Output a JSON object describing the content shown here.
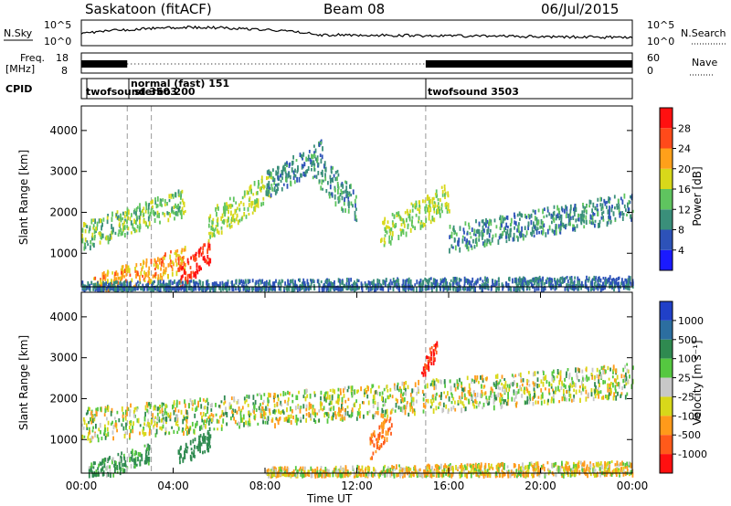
{
  "header": {
    "title": "Saskatoon (fitACF)",
    "beam": "Beam 08",
    "date": "06/Jul/2015"
  },
  "noise_panel": {
    "left_label": "N.Sky",
    "right_label": "N.Search",
    "left_ticks": [
      "10^5",
      "10^0"
    ],
    "right_ticks": [
      "10^5",
      "10^0"
    ]
  },
  "freq_panel": {
    "left_label_1": "Freq.",
    "left_label_2": "[MHz]",
    "right_label": "Nave",
    "left_ticks": [
      "18",
      "8"
    ],
    "right_ticks": [
      "60",
      "0"
    ]
  },
  "cpid_panel": {
    "label": "CPID",
    "modes": [
      {
        "text": "twofsound 3503",
        "start": "00:00"
      },
      {
        "text": "normal (fast) 151",
        "start": "02:00"
      },
      {
        "text": "stereo 200",
        "start": "03:05"
      },
      {
        "text": "twofsound 3503",
        "start": "15:00"
      }
    ]
  },
  "x_axis": {
    "label": "Time UT",
    "ticks": [
      "00:00",
      "04:00",
      "08:00",
      "12:00",
      "16:00",
      "20:00",
      "00:00"
    ]
  },
  "power_panel": {
    "ylabel": "Slant Range [km]",
    "yticks": [
      "1000",
      "2000",
      "3000",
      "4000"
    ],
    "colorbar_label": "Power [dB]",
    "colorbar_ticks": [
      "4",
      "8",
      "12",
      "16",
      "20",
      "24",
      "28"
    ],
    "colors": [
      "#1a1aff",
      "#2d52b8",
      "#3a8f7a",
      "#5fc45f",
      "#d8d81a",
      "#ffa01a",
      "#ff4a1a",
      "#ff1010"
    ]
  },
  "velocity_panel": {
    "ylabel": "Slant Range [km]",
    "yticks": [
      "1000",
      "2000",
      "3000",
      "4000"
    ],
    "colorbar_label": "Velocity [m s⁻¹]",
    "colorbar_ticks": [
      "1000",
      "500",
      "100",
      "25",
      "-25",
      "-100",
      "-500",
      "-1000"
    ],
    "colors": [
      "#2040c8",
      "#2c6ea0",
      "#2f8a50",
      "#55c840",
      "#c8c8c8",
      "#d8d81a",
      "#ff9a1a",
      "#ff5a1a",
      "#ff1010"
    ]
  },
  "chart_data": [
    {
      "type": "heatmap",
      "title": "Power [dB]",
      "xlabel": "Time UT",
      "ylabel": "Slant Range [km]",
      "x_range_hours": [
        0,
        24
      ],
      "ylim": [
        180,
        4600
      ],
      "color_scale": [
        0,
        32
      ],
      "features": [
        {
          "t": [
            0.0,
            4.5
          ],
          "r": [
            1450,
            2300
          ],
          "level": 14
        },
        {
          "t": [
            0.5,
            4.5
          ],
          "r": [
            200,
            900
          ],
          "level": 22
        },
        {
          "t": [
            4.2,
            5.6
          ],
          "r": [
            400,
            1100
          ],
          "level": 28
        },
        {
          "t": [
            5.5,
            8.3
          ],
          "r": [
            1700,
            2700
          ],
          "level": 16
        },
        {
          "t": [
            8.0,
            10.5
          ],
          "r": [
            2700,
            3500
          ],
          "level": 10
        },
        {
          "t": [
            10.0,
            12.0
          ],
          "r": [
            3300,
            2100
          ],
          "level": 10
        },
        {
          "t": [
            13.0,
            16.0
          ],
          "r": [
            1500,
            2400
          ],
          "level": 16
        },
        {
          "t": [
            16.0,
            24.0
          ],
          "r": [
            1400,
            2200
          ],
          "level": 10
        },
        {
          "t": [
            0.0,
            24.0
          ],
          "r": [
            180,
            320
          ],
          "level": 8
        }
      ]
    },
    {
      "type": "heatmap",
      "title": "Velocity [m s⁻¹]",
      "xlabel": "Time UT",
      "ylabel": "Slant Range [km]",
      "x_range_hours": [
        0,
        24
      ],
      "ylim": [
        180,
        4600
      ],
      "color_scale": [
        -1000,
        1000
      ],
      "features": [
        {
          "t": [
            0.0,
            24.0
          ],
          "r": [
            1400,
            2500
          ],
          "velocity": 0
        },
        {
          "t": [
            4.2,
            5.6
          ],
          "r": [
            600,
            1050
          ],
          "velocity": 300
        },
        {
          "t": [
            0.3,
            3.0
          ],
          "r": [
            200,
            700
          ],
          "velocity": 150
        },
        {
          "t": [
            12.5,
            13.5
          ],
          "r": [
            800,
            1500
          ],
          "velocity": -500
        },
        {
          "t": [
            14.8,
            15.5
          ],
          "r": [
            2800,
            3300
          ],
          "velocity": -1000
        },
        {
          "t": [
            8.0,
            24.0
          ],
          "r": [
            180,
            350
          ],
          "velocity": -75
        }
      ]
    }
  ]
}
